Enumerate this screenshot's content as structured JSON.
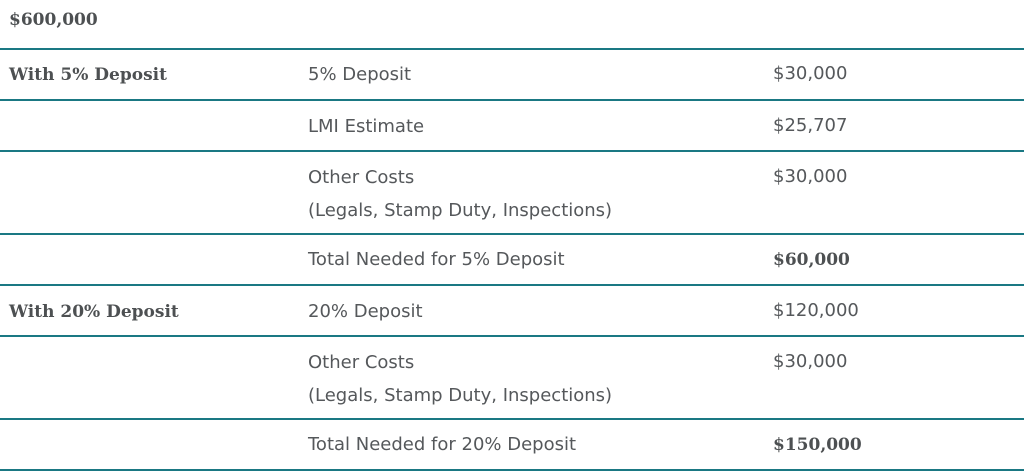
{
  "title": "$600,000",
  "sections": [
    {
      "label": "With 5% Deposit",
      "rows": [
        {
          "item": "5% Deposit",
          "item_sub": "",
          "amount": "$30,000"
        },
        {
          "item": "LMI Estimate",
          "item_sub": "",
          "amount": "$25,707"
        },
        {
          "item": "Other Costs",
          "item_sub": "(Legals, Stamp Duty, Inspections)",
          "amount": "$30,000"
        },
        {
          "item": "Total Needed for 5% Deposit",
          "item_sub": "",
          "amount": "$60,000"
        }
      ]
    },
    {
      "label": "With 20% Deposit",
      "rows": [
        {
          "item": "20% Deposit",
          "item_sub": "",
          "amount": "$120,000"
        },
        {
          "item": "Other Costs",
          "item_sub": "(Legals, Stamp Duty, Inspections)",
          "amount": "$30,000"
        },
        {
          "item": "Total Needed for 20% Deposit",
          "item_sub": "",
          "amount": "$150,000"
        }
      ]
    }
  ]
}
